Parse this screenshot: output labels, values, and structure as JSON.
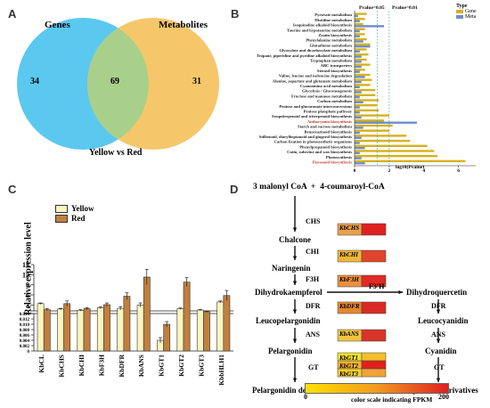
{
  "panels": {
    "A": {
      "label": "A",
      "set_labels": [
        "Genes",
        "Metabolites"
      ],
      "counts": {
        "genes_only": 34,
        "shared": 69,
        "metabolites_only": 31
      },
      "caption": "Yellow vs Red",
      "colors": {
        "genes": "#5bc8f0",
        "metabolites": "#f6c66a",
        "overlap": "#a8d08a"
      }
    },
    "B": {
      "label": "B",
      "thresholds": [
        "Pvalue=0.05",
        "Pvalue=0.01"
      ],
      "legend_title": "Type",
      "legend": [
        {
          "name": "Gene",
          "color": "#d4b21e"
        },
        {
          "name": "Meta",
          "color": "#6d8fc8"
        }
      ],
      "xlabel": "log10(Pvalue)"
    },
    "C": {
      "label": "C",
      "ylabel": "Relative expression level",
      "colors": {
        "Yellow": "#fbf5c0",
        "Red": "#c17f3e"
      }
    },
    "D": {
      "label": "D",
      "title": "3 malonyl CoA  +  4-coumaroyl-CoA",
      "metabolites_left": [
        "Chalcone",
        "Naringenin",
        "Dihydrokaempferol",
        "Leucopelargonidin",
        "Pelargonidin",
        "Pelargonidin derivatives"
      ],
      "metabolites_right": [
        "Dihydroquercetin",
        "Leucocyanidin",
        "Cyanidin",
        "Cyanidin derivatives"
      ],
      "enzymes_left": [
        "CHS",
        "CHI",
        "F3H",
        "DFR",
        "ANS",
        "GT"
      ],
      "enzymes_right": [
        "DFR",
        "ANS",
        "GT"
      ],
      "f3h_prime": "F3'H",
      "genes": [
        "KbCHS",
        "KbCHI",
        "KbF3H",
        "KbDFR",
        "KbANS",
        "KbGT1",
        "KbGT2",
        "KbGT3"
      ],
      "colorbar_min": "0",
      "colorbar_max": "200",
      "colorbar_label": "color scale indicating FPKM"
    }
  },
  "chart_data": [
    {
      "type": "bar",
      "panel": "B",
      "orientation": "horizontal",
      "categories": [
        "Pyruvate metabolism",
        "Histidine metabolism",
        "Isoquinoline alkaloid biosynthesis",
        "Taurine and hypotaurine metabolism",
        "Zeatin biosynthesis",
        "Phenylalanine metabolism",
        "Glutathione metabolism",
        "Glyoxylate and dicarboxylate metabolism",
        "Tropane, piperidine and pyridine alkaloid biosynthesis",
        "Tryptophan metabolism",
        "ABC transporters",
        "Steroid biosynthesis",
        "Valine, leucine and isoleucine degradation",
        "Alanine, aspartate and glutamate metabolism",
        "Cyanoamino acid metabolism",
        "Glycolysis / Gluconeogenesis",
        "Fructose and mannose metabolism",
        "Carbon metabolism",
        "Pentose and glucuronate interconversions",
        "Pentose phosphate pathway",
        "Sesquiterpenoid and triterpenoid biosynthesis",
        "Anthocyanin biosynthesis",
        "Starch and sucrose metabolism",
        "Benzoxazinoid biosynthesis",
        "Stilbenoid, diarylheptanoid and gingerol biosynthesis",
        "Carbon fixation in photosynthetic organisms",
        "Phenylpropanoid biosynthesis",
        "Cutin, suberine and wax biosynthesis",
        "Photosynthesis",
        "Flavonoid biosynthesis"
      ],
      "highlight_color": "#c0392b",
      "highlighted": [
        "Anthocyanin biosynthesis",
        "Flavonoid biosynthesis"
      ],
      "series": [
        {
          "name": "Gene",
          "values": [
            0.7,
            0.6,
            0.5,
            0.6,
            0.6,
            0.7,
            0.9,
            0.7,
            0.8,
            0.7,
            0.9,
            0.6,
            0.9,
            1.0,
            0.9,
            1.2,
            1.2,
            1.4,
            1.3,
            1.4,
            2.0,
            1.7,
            2.2,
            2.0,
            3.0,
            3.2,
            4.2,
            4.6,
            4.8,
            6.4
          ]
        },
        {
          "name": "Meta",
          "values": [
            0.2,
            0.3,
            1.7,
            0.3,
            0.3,
            0.5,
            0.9,
            0.3,
            0.4,
            0.4,
            0.4,
            0.3,
            0.6,
            0.4,
            0.3,
            0.4,
            0.3,
            0.5,
            0.3,
            0.3,
            0.4,
            3.6,
            0.5,
            0.3,
            0.4,
            0.3,
            0.6,
            0.3,
            0.4,
            0.6
          ]
        }
      ],
      "thresholds": [
        1.301,
        2.0
      ],
      "xlim": [
        0,
        7
      ],
      "xticks": [
        "0",
        "2",
        "4",
        "6"
      ],
      "xlabel": "log10(Pvalue)"
    },
    {
      "type": "bar",
      "panel": "C",
      "categories": [
        "KbCL",
        "KbCHS",
        "KbCHI",
        "KbF3H",
        "KbDFR",
        "KbANS",
        "KbGT1",
        "KbGT2",
        "KbGT3",
        "KbbHLH1"
      ],
      "series": [
        {
          "name": "Yellow",
          "values": [
            3.4,
            1.8,
            1.4,
            2.2,
            2.0,
            3.0,
            0.004,
            1.9,
            1.5,
            3.9
          ],
          "errors": [
            0.2,
            0.2,
            0.2,
            0.3,
            0.5,
            0.6,
            0.001,
            0.2,
            0.2,
            0.3
          ]
        },
        {
          "name": "Red",
          "values": [
            1.6,
            3.4,
            1.9,
            3.1,
            5.6,
            11.3,
            0.01,
            9.8,
            1.0,
            5.8
          ],
          "errors": [
            0.3,
            0.8,
            0.3,
            0.5,
            1.0,
            2.3,
            0.001,
            1.3,
            0.2,
            1.5
          ]
        }
      ],
      "ylim_upper": [
        0,
        15
      ],
      "ylim_lower": [
        0,
        0.014
      ],
      "yticks_upper": [
        "3",
        "6",
        "9",
        "12",
        "15"
      ],
      "yticks_lower": [
        "0",
        "0.002",
        "0.004",
        "0.006",
        "0.008",
        "0.010",
        "0.012",
        "0.014"
      ],
      "ylabel": "Relative expression level",
      "legend_position": "top-left"
    },
    {
      "type": "heatmap",
      "panel": "D",
      "rows": [
        "KbCHS",
        "KbCHI",
        "KbF3H",
        "KbDFR",
        "KbANS",
        "KbGT1",
        "KbGT2",
        "KbGT3"
      ],
      "columns_count": 2,
      "cell_colors": [
        [
          "#e8a04a",
          "#e02020"
        ],
        [
          "#f1b53a",
          "#e0452a"
        ],
        [
          "#ec8f3c",
          "#e02a25"
        ],
        [
          "#e4862f",
          "#d92a25"
        ],
        [
          "#f0c23e",
          "#d9342a"
        ],
        [
          "#f5e22b",
          "#f3bf2a"
        ],
        [
          "#f2b032",
          "#e02020"
        ],
        [
          "#f3cf2e",
          "#f0a23a"
        ]
      ],
      "color_range": [
        0,
        200
      ]
    }
  ]
}
